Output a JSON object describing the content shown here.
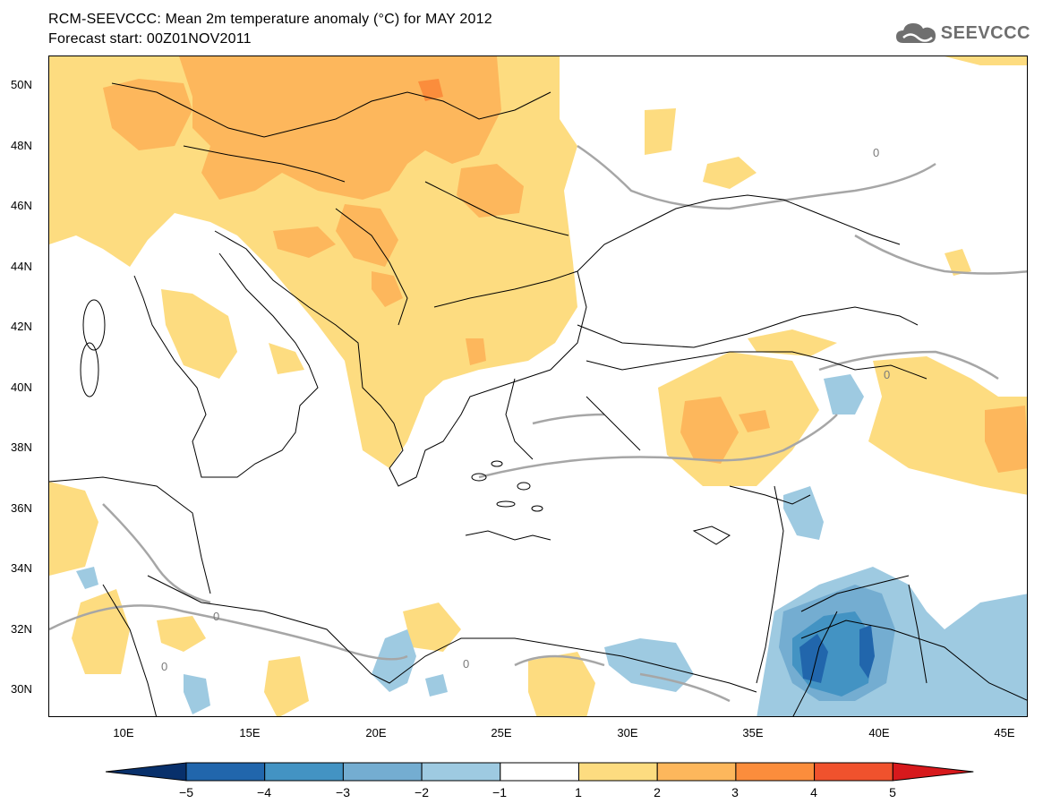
{
  "title": {
    "line1": "RCM-SEEVCCC: Mean 2m temperature anomaly (°C) for MAY 2012",
    "line2": "Forecast start: 00Z01NOV2011"
  },
  "logo": {
    "text": "SEEVCCC",
    "icon": "cloud-icon"
  },
  "map": {
    "extent_lon": [
      7,
      46
    ],
    "extent_lat": [
      29,
      51
    ],
    "lat_ticks": [
      "50N",
      "48N",
      "46N",
      "44N",
      "42N",
      "40N",
      "38N",
      "36N",
      "34N",
      "32N",
      "30N"
    ],
    "lon_ticks": [
      "10E",
      "15E",
      "20E",
      "25E",
      "30E",
      "35E",
      "40E",
      "45E"
    ],
    "contour_label": "0"
  },
  "colorbar": {
    "labels": [
      "−5",
      "−4",
      "−3",
      "−2",
      "−1",
      "1",
      "2",
      "3",
      "4",
      "5"
    ],
    "colors": [
      "#08306b",
      "#2166ac",
      "#4393c3",
      "#74add1",
      "#9ecae1",
      "#ffffff",
      "#fddc80",
      "#fdb75c",
      "#fb8d3c",
      "#f0522d",
      "#d7191c"
    ]
  }
}
